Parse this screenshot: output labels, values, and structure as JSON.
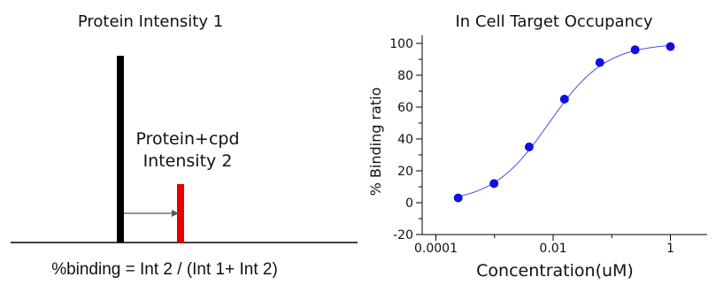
{
  "schematic": {
    "title": "Protein Intensity 1",
    "label_line1": "Protein+cpd",
    "label_line2": "Intensity 2",
    "formula": "%binding = Int 2 / (Int 1+ Int 2)",
    "bar1_color": "#000000",
    "bar2_color": "#e60000",
    "arrow_color": "#555555"
  },
  "chart_data": {
    "type": "scatter",
    "title": "In Cell Target Occupancy",
    "xlabel": "Concentration(uM)",
    "ylabel": "% Binding ratio",
    "x_scale": "log",
    "xlim": [
      0.0001,
      1.6
    ],
    "ylim": [
      -20,
      105
    ],
    "x_ticks": [
      0.0001,
      0.01,
      1
    ],
    "x_tick_labels": [
      "0.0001",
      "0.01",
      "1"
    ],
    "y_ticks": [
      -20,
      0,
      20,
      40,
      60,
      80,
      100
    ],
    "y_tick_labels": [
      "-20",
      "0",
      "20",
      "40",
      "60",
      "80",
      "100"
    ],
    "grid": false,
    "series": [
      {
        "x": [
          0.00024,
          0.00098,
          0.0039,
          0.0156,
          0.0625,
          0.25,
          1.0
        ],
        "y": [
          3,
          12,
          35,
          65,
          88,
          96,
          98
        ],
        "point_color": "#1010e0",
        "fit_color": "#4a4ae8",
        "fit": {
          "bottom": 0,
          "top": 100,
          "ec50": 0.0085,
          "hill": 0.9
        }
      }
    ]
  }
}
